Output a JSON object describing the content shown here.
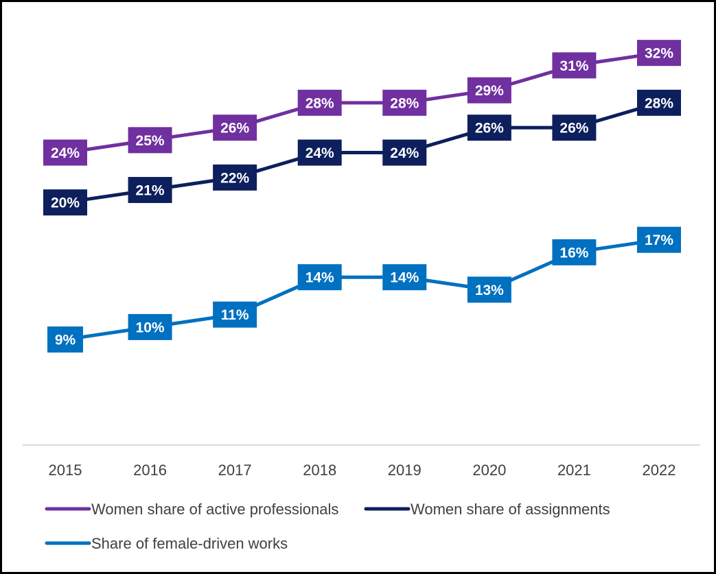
{
  "chart_data": {
    "type": "line",
    "title": "",
    "xlabel": "",
    "ylabel": "",
    "categories": [
      "2015",
      "2016",
      "2017",
      "2018",
      "2019",
      "2020",
      "2021",
      "2022"
    ],
    "ylim": [
      0,
      36
    ],
    "grid": false,
    "legend_position": "bottom",
    "series": [
      {
        "name": "Women share of active professionals",
        "values": [
          24,
          25,
          26,
          28,
          28,
          29,
          31,
          32
        ],
        "color": "#7030A0"
      },
      {
        "name": "Women share of assignments",
        "values": [
          20,
          21,
          22,
          24,
          24,
          26,
          26,
          28
        ],
        "color": "#0D1F5C"
      },
      {
        "name": "Share of female-driven works",
        "values": [
          9,
          10,
          11,
          14,
          14,
          13,
          16,
          17
        ],
        "color": "#0070C0"
      }
    ],
    "value_suffix": "%"
  }
}
